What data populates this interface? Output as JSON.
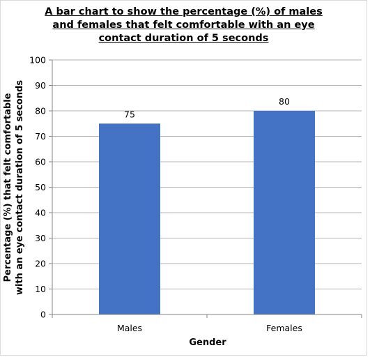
{
  "chart_data": {
    "type": "bar",
    "title_lines": [
      "A bar chart to show the percentage (%) of males",
      "and females that felt comfortable with an eye",
      "contact duration of 5 seconds"
    ],
    "categories": [
      "Males",
      "Females"
    ],
    "values": [
      75,
      80
    ],
    "data_labels": [
      "75",
      "80"
    ],
    "xlabel": "Gender",
    "ylabel_lines": [
      "Percentage (%) that felt comfortable",
      "with an eye contact duration of 5 seconds"
    ],
    "ylim": [
      0,
      100
    ],
    "y_ticks": [
      0,
      10,
      20,
      30,
      40,
      50,
      60,
      70,
      80,
      90,
      100
    ],
    "grid": true,
    "legend": false,
    "colors": {
      "bar": "#4472C4",
      "grid": "#b3b3b3",
      "axis": "#868686"
    }
  }
}
